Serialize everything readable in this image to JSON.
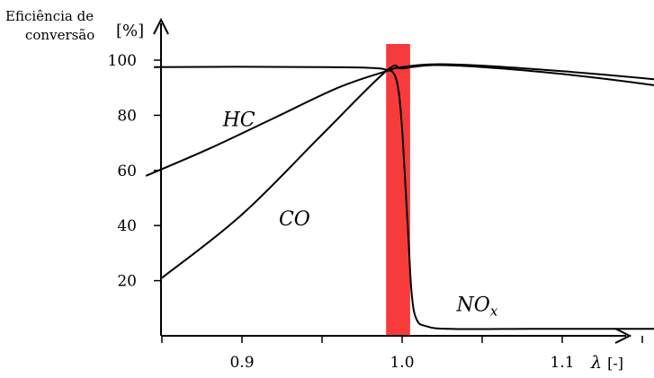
{
  "chart_data": {
    "type": "line",
    "ylabel_line1": "Eficiência de",
    "ylabel_line2": "conversão",
    "ylabel_unit": "[%]",
    "xlabel_symbol": "λ",
    "xlabel_unit": "[-]",
    "xlim": [
      0.82,
      1.2
    ],
    "ylim": [
      0,
      105
    ],
    "xticks": [
      0.9,
      1.0,
      1.1
    ],
    "xtick_labels": [
      "0.9",
      "1.0",
      "1.1"
    ],
    "yticks": [
      20,
      40,
      60,
      80,
      100
    ],
    "ytick_labels": [
      "20",
      "40",
      "60",
      "80",
      "100"
    ],
    "highlight_band": {
      "x_from": 0.99,
      "x_to": 1.005,
      "color": "#f73b3b"
    },
    "series": [
      {
        "name": "HC",
        "label_parts": [
          "HC"
        ],
        "label_at": [
          0.888,
          76
        ],
        "values": [
          [
            0.84,
            58
          ],
          [
            0.88,
            68
          ],
          [
            0.92,
            79
          ],
          [
            0.96,
            90
          ],
          [
            0.99,
            96
          ],
          [
            1.0,
            97.5
          ],
          [
            1.02,
            98.5
          ],
          [
            1.05,
            98
          ],
          [
            1.1,
            96
          ],
          [
            1.15,
            93.5
          ],
          [
            1.19,
            91
          ]
        ]
      },
      {
        "name": "CO",
        "label_parts": [
          "CO"
        ],
        "label_at": [
          0.923,
          40
        ],
        "values": [
          [
            0.85,
            21
          ],
          [
            0.9,
            44
          ],
          [
            0.95,
            73
          ],
          [
            0.99,
            96
          ],
          [
            1.0,
            97
          ],
          [
            1.02,
            98.2
          ],
          [
            1.05,
            97.5
          ],
          [
            1.1,
            95
          ],
          [
            1.15,
            91.5
          ],
          [
            1.19,
            88
          ]
        ]
      },
      {
        "name": "NOx",
        "label_parts": [
          "NO",
          "x"
        ],
        "label_at": [
          1.034,
          9
        ],
        "values": [
          [
            0.845,
            97.5
          ],
          [
            0.9,
            97.6
          ],
          [
            0.95,
            97.5
          ],
          [
            0.98,
            97.2
          ],
          [
            0.99,
            96.5
          ],
          [
            0.995,
            95
          ],
          [
            0.998,
            88
          ],
          [
            1.0,
            75
          ],
          [
            1.002,
            55
          ],
          [
            1.004,
            35
          ],
          [
            1.006,
            15
          ],
          [
            1.009,
            6
          ],
          [
            1.015,
            3.5
          ],
          [
            1.03,
            2.5
          ],
          [
            1.08,
            2.5
          ],
          [
            1.12,
            2.5
          ],
          [
            1.17,
            2.5
          ]
        ]
      }
    ],
    "line_color": "#000000",
    "grid": false
  }
}
